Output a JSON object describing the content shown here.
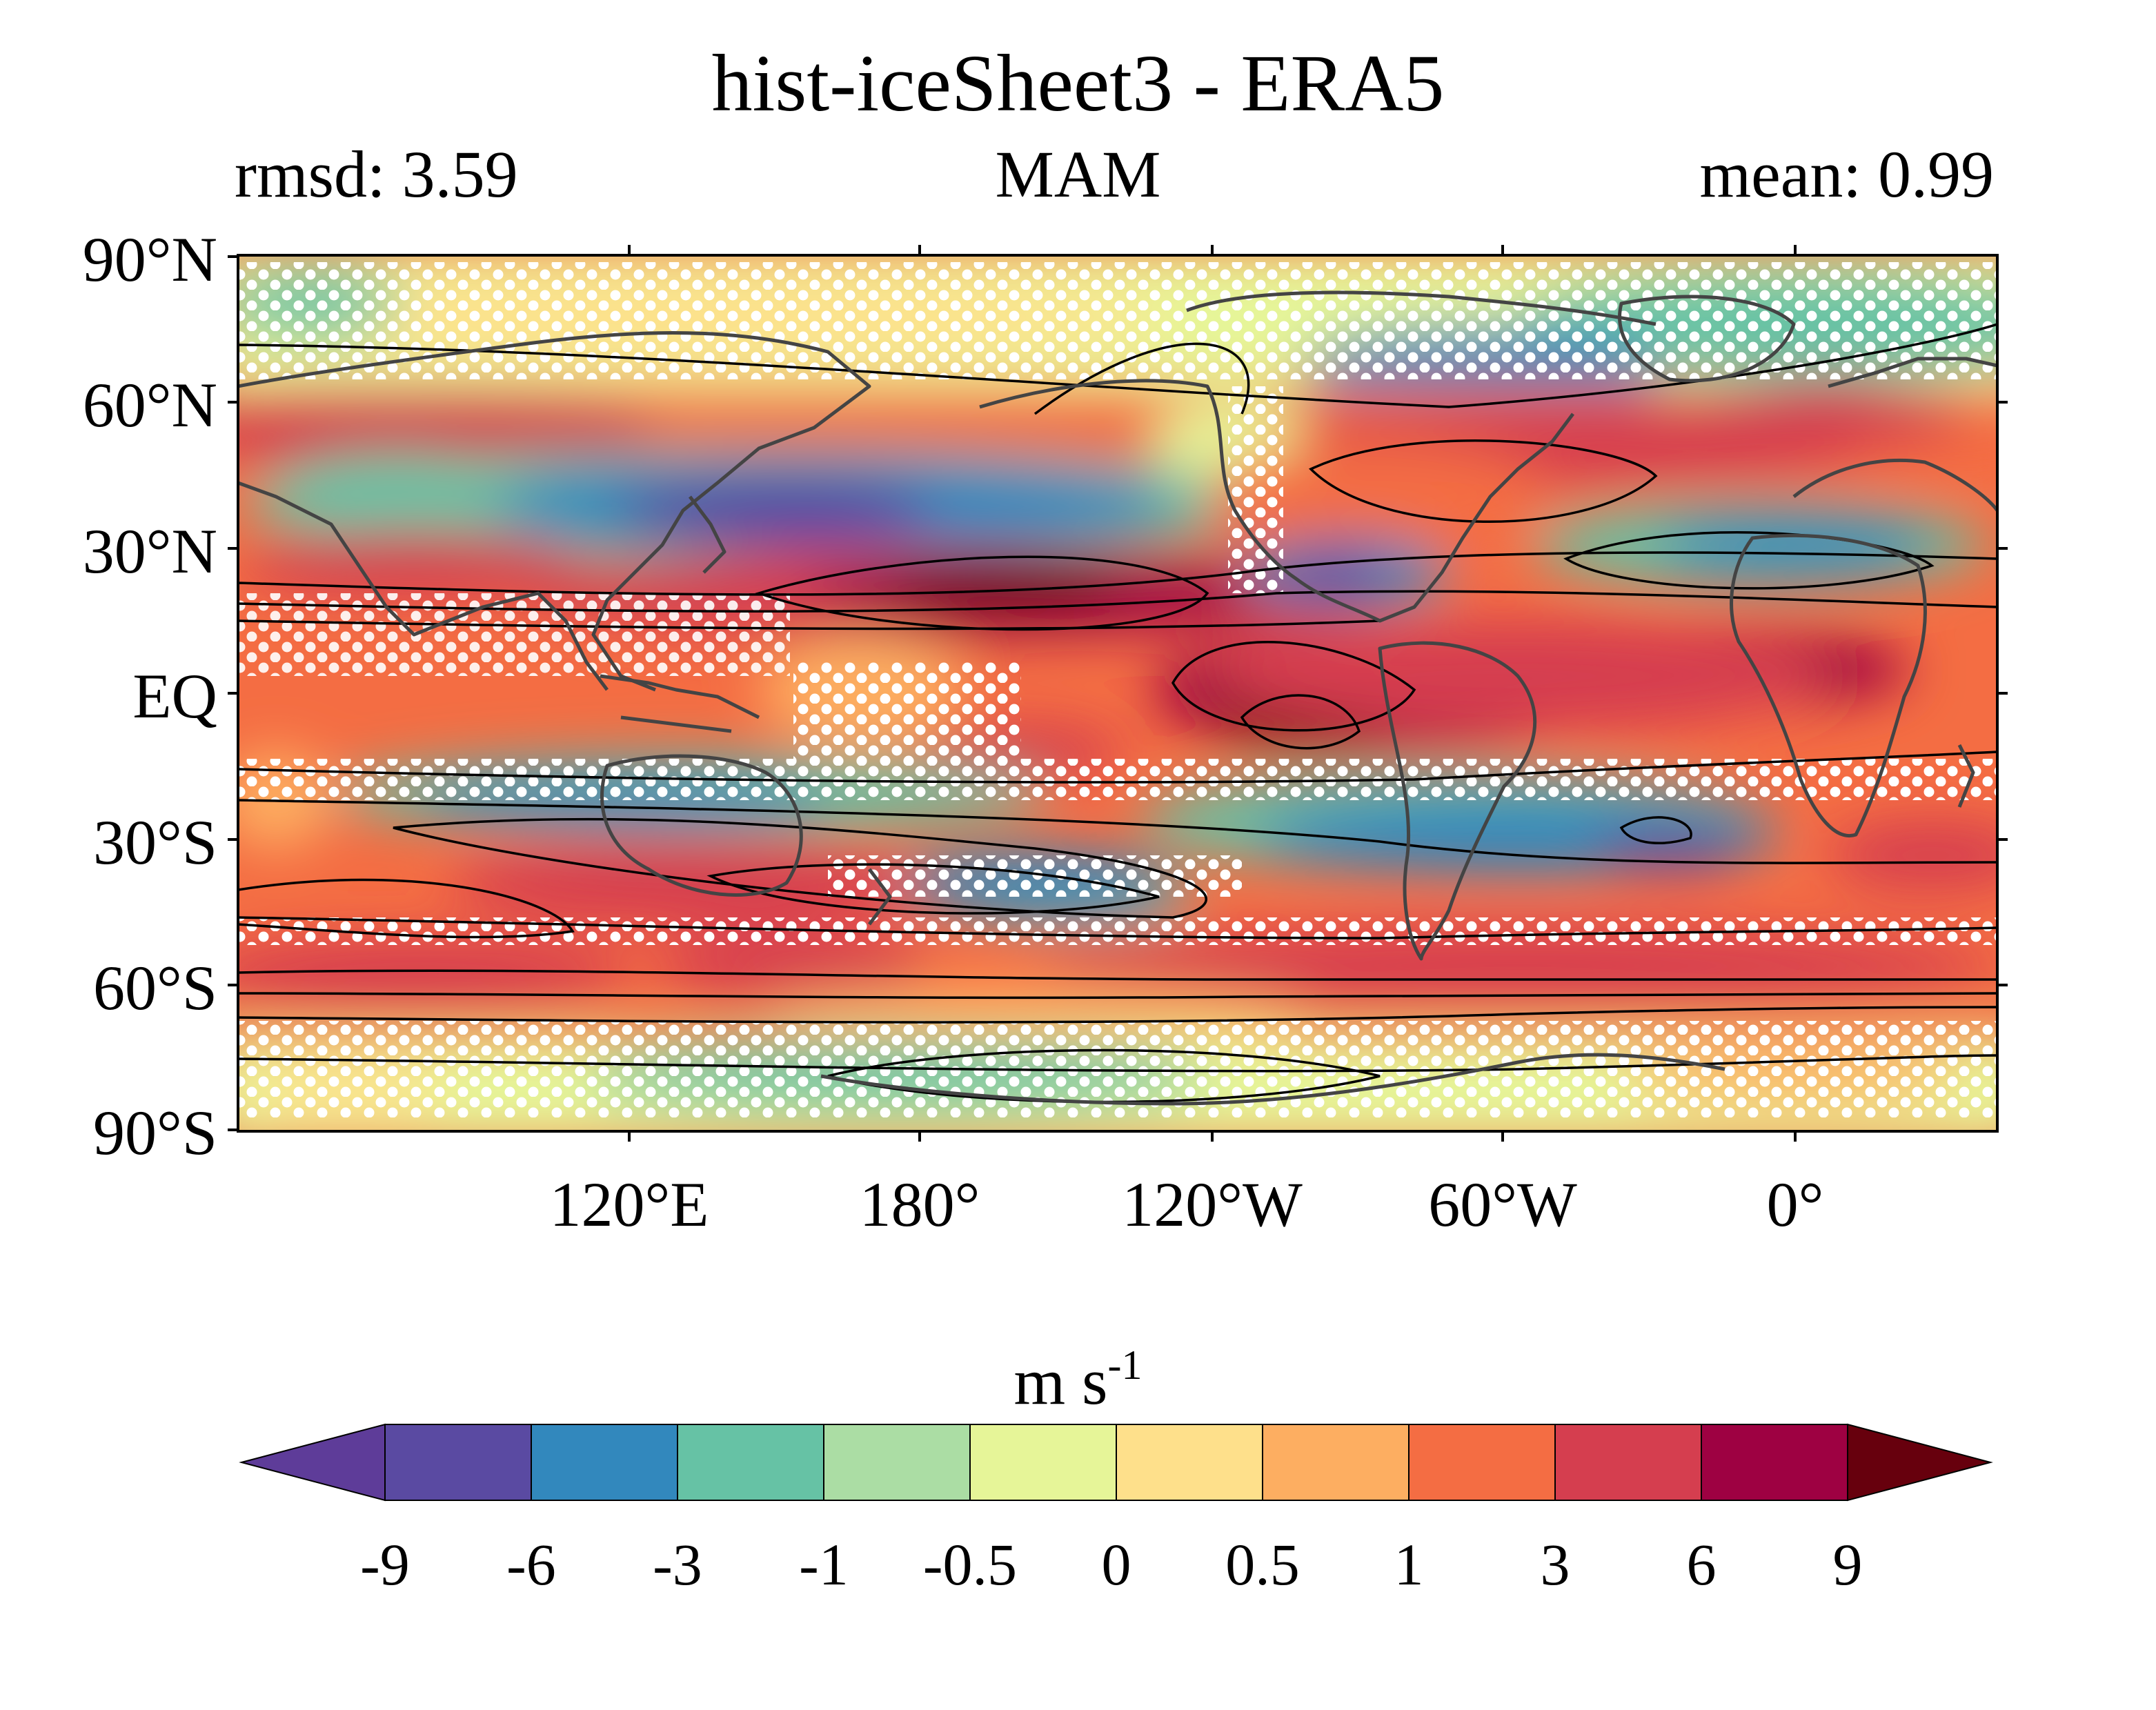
{
  "header": {
    "title": "hist-iceSheet3 - ERA5",
    "left_label": "rmsd: 3.59",
    "center_label": "MAM",
    "right_label": "mean: 0.99"
  },
  "map": {
    "projection": "equirectangular",
    "lon_range": [
      40,
      400
    ],
    "lat_range": [
      -90,
      90
    ],
    "lat_ticks": [
      {
        "lat": 90,
        "label": "90°N"
      },
      {
        "lat": 60,
        "label": "60°N"
      },
      {
        "lat": 30,
        "label": "30°N"
      },
      {
        "lat": 0,
        "label": "EQ"
      },
      {
        "lat": -30,
        "label": "30°S"
      },
      {
        "lat": -60,
        "label": "60°S"
      },
      {
        "lat": -90,
        "label": "90°S"
      }
    ],
    "lon_ticks": [
      {
        "lon": 120,
        "label": "120°E"
      },
      {
        "lon": 180,
        "label": "180°"
      },
      {
        "lon": 240,
        "label": "120°W"
      },
      {
        "lon": 300,
        "label": "60°W"
      },
      {
        "lon": 360,
        "label": "0°"
      }
    ],
    "stippling_color": "#ffffff",
    "contour_color": "#000000",
    "coastline_color": "#444444"
  },
  "colorbar": {
    "units_base": "m s",
    "units_exponent": "-1",
    "levels": [
      "-9",
      "-6",
      "-3",
      "-1",
      "-0.5",
      "0",
      "0.5",
      "1",
      "3",
      "6",
      "9"
    ],
    "colors": [
      "#5e3c99",
      "#5a4aa2",
      "#3288bd",
      "#66c2a5",
      "#abdda4",
      "#e6f598",
      "#fee08b",
      "#fdae61",
      "#f46d43",
      "#d53e4f",
      "#9e0142",
      "#67000d"
    ],
    "extend": "both"
  }
}
